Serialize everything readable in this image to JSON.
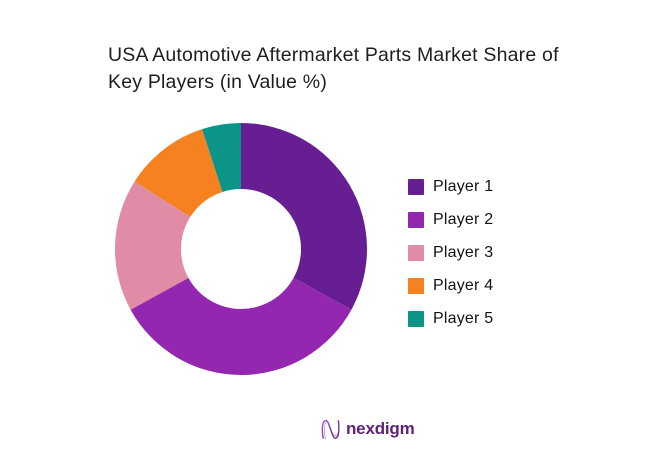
{
  "header": {
    "title": "USA Automotive Aftermarket Parts Market Share of Key Players (in Value %)",
    "title_lines": [
      "USA Automotive Aftermarket Parts Market Share of",
      "Key Players (in Value %)"
    ]
  },
  "chart_data": {
    "type": "pie",
    "subtype": "donut",
    "title": "USA Automotive Aftermarket Parts Market Share of Key Players (in Value %)",
    "categories": [
      "Player 1",
      "Player 2",
      "Player 3",
      "Player 4",
      "Player 5"
    ],
    "values": [
      33,
      34,
      17,
      11,
      5
    ],
    "unit": "%",
    "colors": [
      "#671E93",
      "#9327B0",
      "#E18CA6",
      "#F58120",
      "#0D9488"
    ],
    "start_angle_deg": 0,
    "clockwise": true,
    "inner_radius_ratio": 0.48,
    "legend_position": "right",
    "data_labels": false
  },
  "footer": {
    "brand": "nexdigm",
    "brand_color": "#5E2379",
    "logo_gradient": [
      "#A24FD8",
      "#5F2480"
    ]
  }
}
